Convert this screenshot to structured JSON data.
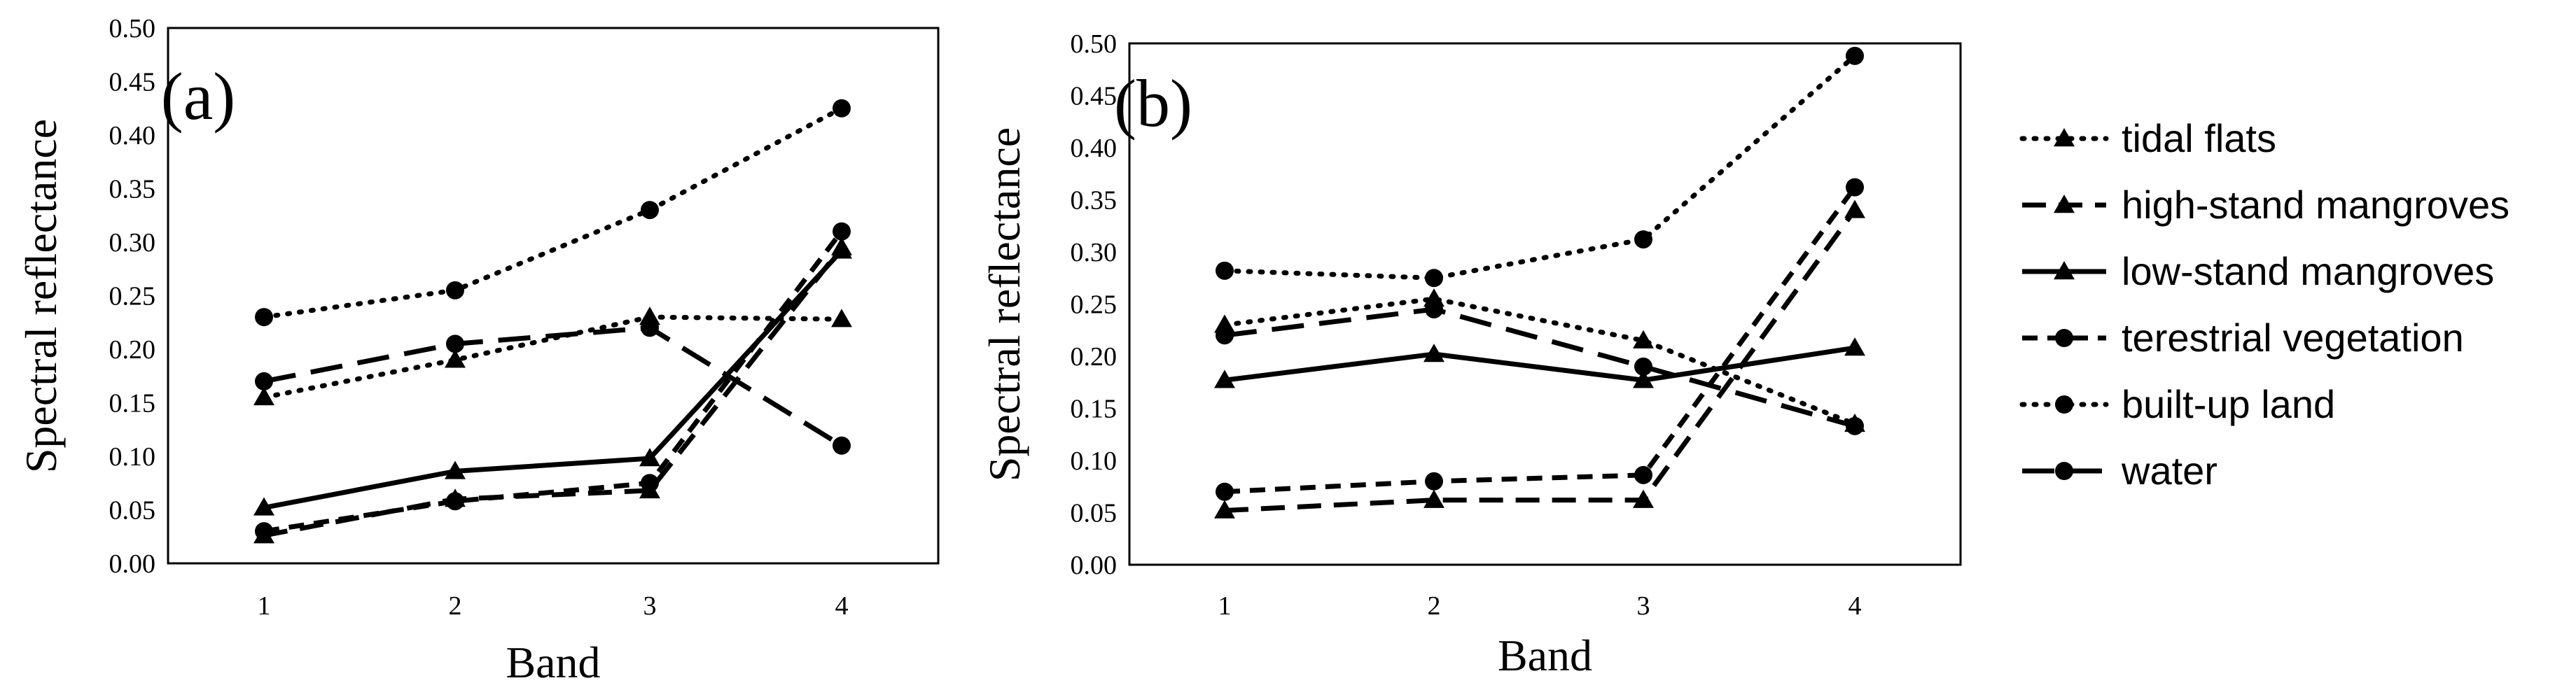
{
  "chart_data": [
    {
      "type": "line",
      "panel_label": "(a)",
      "xlabel": "Band",
      "ylabel": "Spectral reflectance",
      "categories": [
        "1",
        "2",
        "3",
        "4"
      ],
      "ylim": [
        0,
        0.5
      ],
      "yticks": [
        "0.00",
        "0.05",
        "0.10",
        "0.15",
        "0.20",
        "0.25",
        "0.30",
        "0.35",
        "0.40",
        "0.45",
        "0.50"
      ],
      "series": [
        {
          "name": "tidal flats",
          "values": [
            0.155,
            0.19,
            0.23,
            0.228
          ]
        },
        {
          "name": "high-stand mangroves",
          "values": [
            0.026,
            0.06,
            0.068,
            0.295
          ]
        },
        {
          "name": "low-stand mangroves",
          "values": [
            0.052,
            0.086,
            0.098,
            0.292
          ]
        },
        {
          "name": "terestrial vegetation",
          "values": [
            0.03,
            0.058,
            0.075,
            0.31
          ]
        },
        {
          "name": "built-up land",
          "values": [
            0.23,
            0.255,
            0.33,
            0.425
          ]
        },
        {
          "name": "water",
          "values": [
            0.17,
            0.205,
            0.22,
            0.11
          ]
        }
      ]
    },
    {
      "type": "line",
      "panel_label": "(b)",
      "xlabel": "Band",
      "ylabel": "Spectral reflectance",
      "categories": [
        "1",
        "2",
        "3",
        "4"
      ],
      "ylim": [
        0,
        0.5
      ],
      "yticks": [
        "0.00",
        "0.05",
        "0.10",
        "0.15",
        "0.20",
        "0.25",
        "0.30",
        "0.35",
        "0.40",
        "0.45",
        "0.50"
      ],
      "series": [
        {
          "name": "tidal flats",
          "values": [
            0.23,
            0.255,
            0.215,
            0.135
          ]
        },
        {
          "name": "high-stand mangroves",
          "values": [
            0.052,
            0.062,
            0.062,
            0.34
          ]
        },
        {
          "name": "low-stand mangroves",
          "values": [
            0.177,
            0.202,
            0.177,
            0.208
          ]
        },
        {
          "name": "terestrial vegetation",
          "values": [
            0.07,
            0.08,
            0.086,
            0.362
          ]
        },
        {
          "name": "built-up land",
          "values": [
            0.282,
            0.275,
            0.312,
            0.488
          ]
        },
        {
          "name": "water",
          "values": [
            0.22,
            0.245,
            0.19,
            0.133
          ]
        }
      ]
    }
  ],
  "legend": {
    "position": "right",
    "items": [
      {
        "name": "tidal flats",
        "style": "dotted",
        "marker": "triangle"
      },
      {
        "name": "high-stand mangroves",
        "style": "dashed",
        "marker": "triangle"
      },
      {
        "name": "low-stand mangroves",
        "style": "solid",
        "marker": "triangle"
      },
      {
        "name": "terestrial vegetation",
        "style": "short-dash",
        "marker": "circle"
      },
      {
        "name": "built-up land",
        "style": "dotted",
        "marker": "circle"
      },
      {
        "name": "water",
        "style": "long-dash",
        "marker": "circle"
      }
    ]
  },
  "colors": {
    "line": "#000000",
    "background": "#ffffff"
  }
}
